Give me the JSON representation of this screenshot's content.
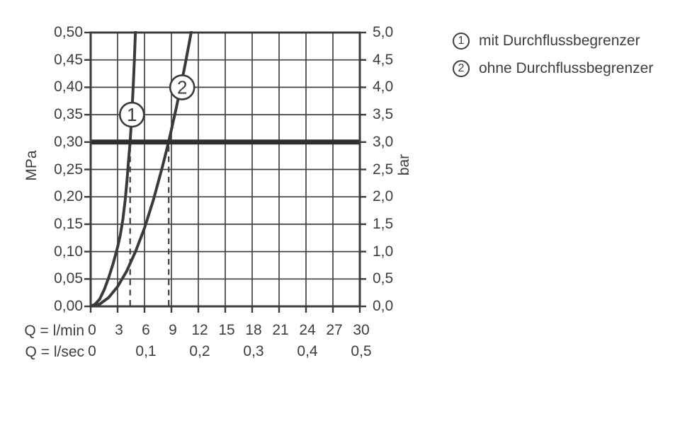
{
  "chart_data": {
    "type": "line",
    "title": "",
    "x_axis": {
      "label_lmin": "Q = l/min",
      "label_lsec": "Q = l/sec",
      "ticks_lmin": [
        "0",
        "3",
        "6",
        "9",
        "12",
        "15",
        "18",
        "21",
        "24",
        "27",
        "30"
      ],
      "ticks_lsec": [
        {
          "value": "0",
          "at_lmin": 0
        },
        {
          "value": "0,1",
          "at_lmin": 6
        },
        {
          "value": "0,2",
          "at_lmin": 12
        },
        {
          "value": "0,3",
          "at_lmin": 18
        },
        {
          "value": "0,4",
          "at_lmin": 24
        },
        {
          "value": "0,5",
          "at_lmin": 30
        }
      ],
      "range_lmin": [
        0,
        30
      ],
      "gridline_step_lmin": 3
    },
    "y_axis_left": {
      "label": "MPa",
      "ticks": [
        "0,00",
        "0,05",
        "0,10",
        "0,15",
        "0,20",
        "0,25",
        "0,30",
        "0,35",
        "0,40",
        "0,45",
        "0,50"
      ],
      "range": [
        0,
        0.5
      ],
      "step": 0.05
    },
    "y_axis_right": {
      "label": "bar",
      "ticks": [
        "0,0",
        "0,5",
        "1,0",
        "1,5",
        "2,0",
        "2,5",
        "3,0",
        "3,5",
        "4,0",
        "4,5",
        "5,0"
      ],
      "range": [
        0,
        5
      ],
      "step": 0.5
    },
    "reference_line": {
      "value_mpa": 0.3,
      "value_bar": 3.0
    },
    "dashed_lines_lmin": [
      4.4,
      8.7
    ],
    "series": [
      {
        "name": "1",
        "label": "mit Durchflussbegrenzer",
        "marker_at": [
          4.6,
          0.35
        ],
        "points": [
          [
            0,
            0
          ],
          [
            0.5,
            0.004
          ],
          [
            1,
            0.013
          ],
          [
            1.5,
            0.03
          ],
          [
            2,
            0.052
          ],
          [
            2.5,
            0.078
          ],
          [
            3,
            0.108
          ],
          [
            3.3,
            0.13
          ],
          [
            3.6,
            0.16
          ],
          [
            3.85,
            0.195
          ],
          [
            4.05,
            0.23
          ],
          [
            4.2,
            0.262
          ],
          [
            4.4,
            0.3
          ],
          [
            4.55,
            0.34
          ],
          [
            4.65,
            0.372
          ],
          [
            4.75,
            0.405
          ],
          [
            4.87,
            0.45
          ],
          [
            5.0,
            0.505
          ]
        ]
      },
      {
        "name": "2",
        "label": "ohne Durchflussbegrenzer",
        "marker_at": [
          10.2,
          0.4
        ],
        "points": [
          [
            0,
            0
          ],
          [
            1,
            0.004
          ],
          [
            2,
            0.016
          ],
          [
            3,
            0.036
          ],
          [
            4,
            0.064
          ],
          [
            5,
            0.1
          ],
          [
            6,
            0.143
          ],
          [
            7,
            0.195
          ],
          [
            8,
            0.255
          ],
          [
            8.7,
            0.301
          ],
          [
            9.5,
            0.359
          ],
          [
            10,
            0.398
          ],
          [
            10.5,
            0.439
          ],
          [
            11,
            0.482
          ],
          [
            11.25,
            0.505
          ]
        ]
      }
    ],
    "grid": true,
    "legend_position": "top-right"
  },
  "legend": {
    "items": [
      {
        "symbol": "1",
        "label": "mit Durchflussbegrenzer"
      },
      {
        "symbol": "2",
        "label": "ohne Durchflussbegrenzer"
      }
    ]
  },
  "colors": {
    "background": "#ffffff",
    "grid": "#414141",
    "axis": "#3b3b3b",
    "curve": "#3a3a3a",
    "reference_line": "#2f2f2f",
    "text": "#3d3d3d",
    "dashed_line": "#3f3f3f"
  }
}
